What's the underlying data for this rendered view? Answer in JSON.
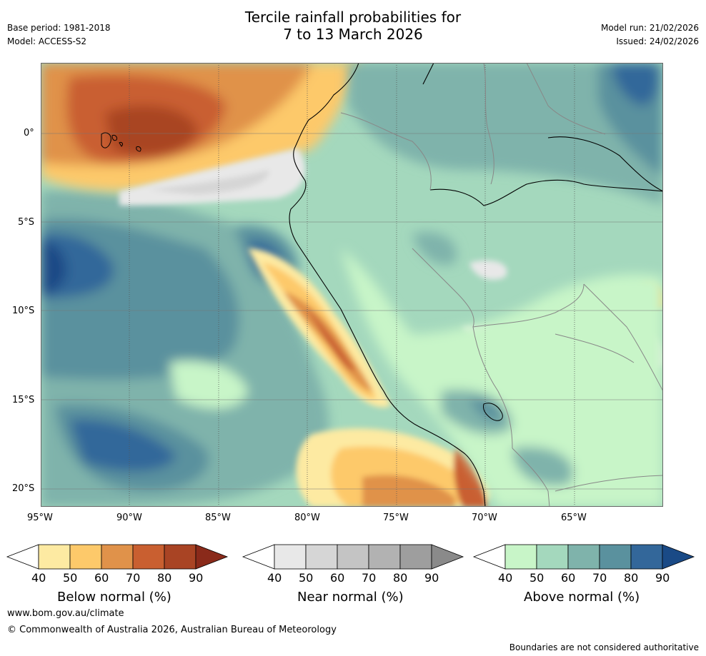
{
  "header": {
    "base_period": "Base period: 1981-2018",
    "model": "Model: ACCESS-S2",
    "title_line1": "Tercile rainfall probabilities for",
    "title_line2": "7 to 13 March 2026",
    "model_run": "Model run: 21/02/2026",
    "issued": "Issued: 24/02/2026"
  },
  "map": {
    "lat_ticks": [
      "0°",
      "5°S",
      "10°S",
      "15°S",
      "20°S"
    ],
    "lon_ticks": [
      "95°W",
      "90°W",
      "85°W",
      "80°W",
      "75°W",
      "70°W",
      "65°W"
    ]
  },
  "legends": [
    {
      "label": "Below normal (%)",
      "ticks": [
        "40",
        "50",
        "60",
        "70",
        "80",
        "90"
      ],
      "colors": [
        "#ffffff",
        "#fdeaa2",
        "#fdc96a",
        "#e0924a",
        "#c95f30",
        "#a94424",
        "#8a2a1a"
      ]
    },
    {
      "label": "Near normal (%)",
      "ticks": [
        "40",
        "50",
        "60",
        "70",
        "80",
        "90"
      ],
      "colors": [
        "#ffffff",
        "#e8e8e8",
        "#d6d6d6",
        "#c4c4c4",
        "#b2b2b2",
        "#9e9e9e",
        "#8a8a8a"
      ]
    },
    {
      "label": "Above normal (%)",
      "ticks": [
        "40",
        "50",
        "60",
        "70",
        "80",
        "90"
      ],
      "colors": [
        "#ffffff",
        "#c8f5c8",
        "#a4d8bd",
        "#7fb3ab",
        "#5a919e",
        "#33679a",
        "#1a4a86"
      ]
    }
  ],
  "footer": {
    "website": "www.bom.gov.au/climate",
    "copyright": "© Commonwealth of Australia 2026, Australian Bureau of Meteorology",
    "disclaimer": "Boundaries are not considered authoritative"
  }
}
